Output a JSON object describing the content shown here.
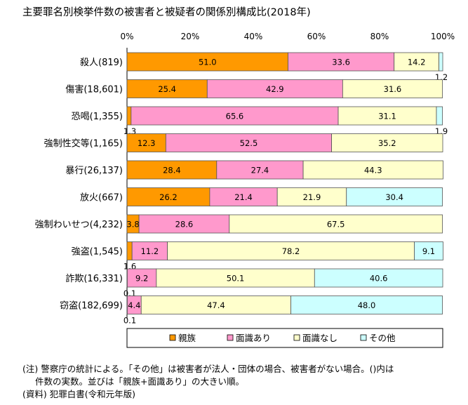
{
  "chart_data": {
    "type": "bar",
    "orientation": "horizontal",
    "stacked": true,
    "title": "主要罪名別検挙件数の被害者と被疑者の関係別構成比(2018年)",
    "xlim": [
      0,
      100
    ],
    "x_ticks": [
      "0%",
      "20%",
      "40%",
      "60%",
      "80%",
      "100%"
    ],
    "categories": [
      "殺人(819)",
      "傷害(18,601)",
      "恐喝(1,355)",
      "強制性交等(1,165)",
      "暴行(26,137)",
      "放火(667)",
      "強制わいせつ(4,232)",
      "強盗(1,545)",
      "詐欺(16,331)",
      "窃盗(182,699)"
    ],
    "series": [
      {
        "name": "親族",
        "color": "#ff9900",
        "values": [
          51.0,
          25.4,
          1.3,
          12.3,
          28.4,
          26.2,
          3.8,
          1.6,
          0.1,
          0.1
        ],
        "labels": [
          "51.0",
          "25.4",
          "1.3",
          "12.3",
          "28.4",
          "26.2",
          "3.8",
          "1.6",
          "0.1",
          "0.1"
        ]
      },
      {
        "name": "面識あり",
        "color": "#ff99cc",
        "values": [
          33.6,
          42.9,
          65.6,
          52.5,
          27.4,
          21.4,
          28.6,
          11.2,
          9.2,
          4.4
        ],
        "labels": [
          "33.6",
          "42.9",
          "65.6",
          "52.5",
          "27.4",
          "21.4",
          "28.6",
          "11.2",
          "9.2",
          "4.4"
        ]
      },
      {
        "name": "面識なし",
        "color": "#ffffcc",
        "values": [
          14.2,
          31.6,
          31.1,
          35.2,
          44.3,
          21.9,
          67.5,
          78.2,
          50.1,
          47.4
        ],
        "labels": [
          "14.2",
          "31.6",
          "31.1",
          "35.2",
          "44.3",
          "21.9",
          "67.5",
          "78.2",
          "50.1",
          "47.4"
        ]
      },
      {
        "name": "その他",
        "color": "#ccffff",
        "values": [
          1.2,
          0,
          1.9,
          0,
          0,
          30.4,
          0,
          9.1,
          40.6,
          48.0
        ],
        "labels": [
          "1.2",
          "",
          "1.9",
          "",
          "",
          "30.4",
          "",
          "9.1",
          "40.6",
          "48.0"
        ]
      }
    ],
    "legend_position": "bottom"
  },
  "notes": {
    "line1": "(注) 警察庁の統計による。「その他」は被害者が法人・団体の場合、被害者がない場合。()内は",
    "line2": "件数の実数。並びは「親族+面識あり」の大きい順。",
    "line3": "(資料) 犯罪白書(令和元年版)"
  }
}
